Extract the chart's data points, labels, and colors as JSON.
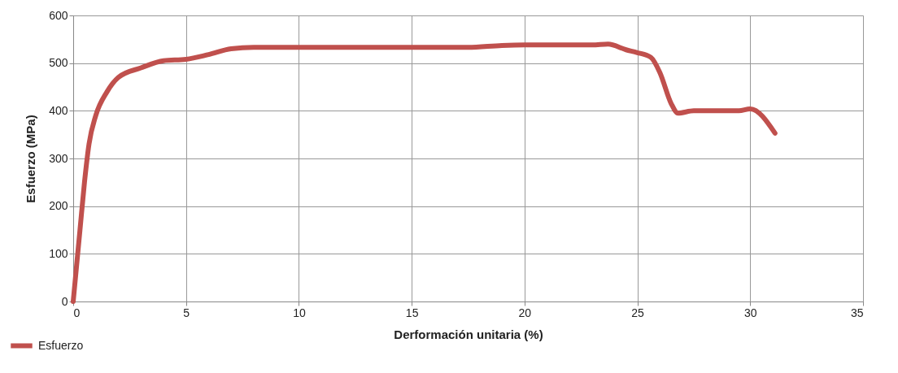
{
  "chart_data": {
    "type": "line",
    "xlabel": "Derformación unitaria (%)",
    "ylabel": "Esfuerzo (MPa)",
    "x": [
      0,
      0.3,
      0.5,
      0.7,
      1,
      1.5,
      2,
      3,
      4,
      5,
      6,
      7,
      8,
      10,
      15,
      17.5,
      19,
      20,
      23,
      23.7,
      24.5,
      25,
      25.6,
      26,
      26.5,
      26.8,
      27.5,
      28.5,
      29.5,
      30,
      31.1
    ],
    "series": [
      {
        "name": "Esfuerzo",
        "color": "#c0504d",
        "values": [
          0,
          150,
          250,
          330,
          390,
          440,
          470,
          490,
          505,
          508,
          518,
          530,
          533,
          533,
          533,
          533,
          537,
          538,
          538,
          540,
          528,
          522,
          512,
          480,
          415,
          395,
          400,
          400,
          400,
          404,
          353
        ]
      }
    ],
    "xlim": [
      0,
      35
    ],
    "xticks": [
      0,
      5,
      10,
      15,
      20,
      25,
      30,
      35
    ],
    "ylim": [
      0,
      600
    ],
    "yticks": [
      0,
      100,
      200,
      300,
      400,
      500,
      600
    ],
    "grid": true,
    "legend": "bottom left",
    "marker": "none",
    "line_style": "solid"
  }
}
